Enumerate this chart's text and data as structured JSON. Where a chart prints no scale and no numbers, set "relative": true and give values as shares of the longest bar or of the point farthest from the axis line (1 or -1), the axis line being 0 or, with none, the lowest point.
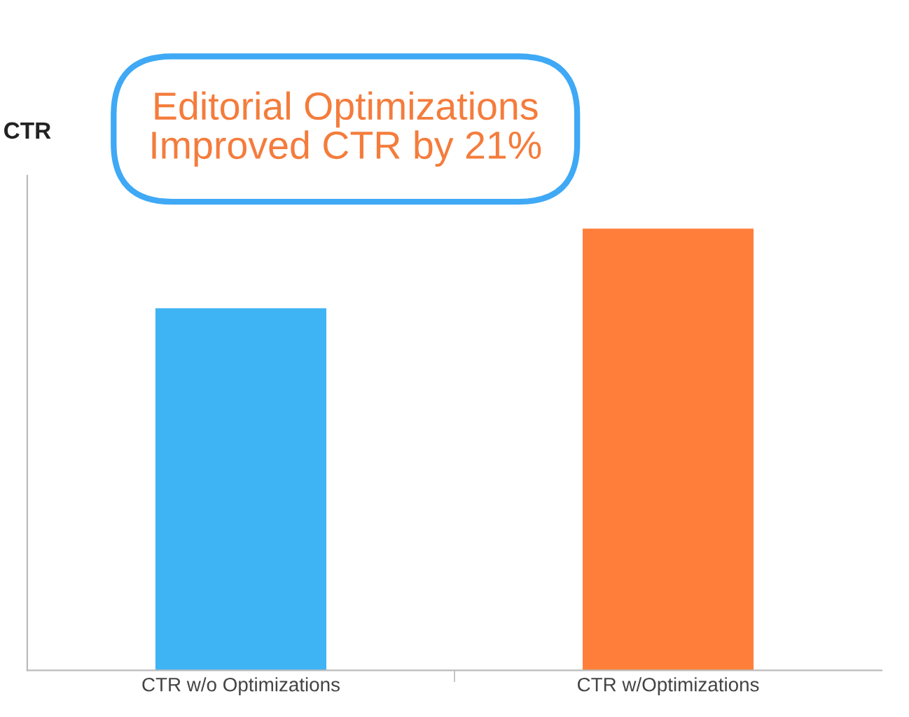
{
  "chart_data": {
    "type": "bar",
    "relative": true,
    "ylabel": "CTR",
    "categories": [
      "CTR w/o Optimizations",
      "CTR w/Optimizations"
    ],
    "values": [
      0.82,
      1
    ],
    "colors": [
      "#3fb4f5",
      "#ff7f3a"
    ],
    "grid": false,
    "legend": false,
    "annotations": [
      "Editorial Optimizations Improved CTR by 21%"
    ]
  }
}
